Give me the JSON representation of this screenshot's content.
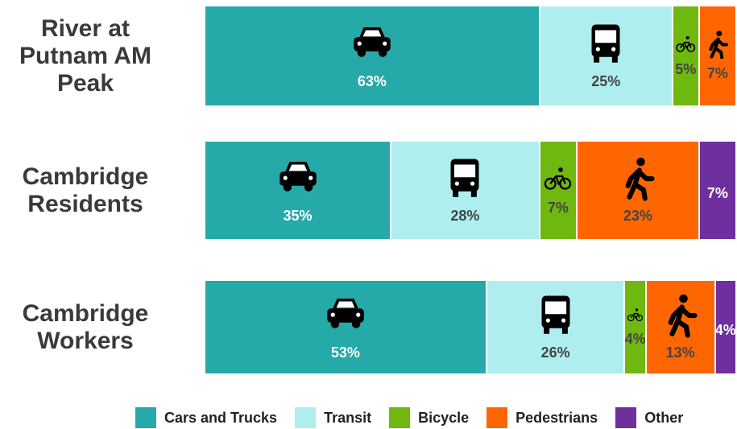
{
  "chart_data": {
    "type": "stacked-bar-horizontal",
    "categories": [
      "River at Putnam AM Peak",
      "Cambridge Residents",
      "Cambridge Workers"
    ],
    "series": [
      {
        "name": "Cars and Trucks",
        "color": "#26a9a9",
        "values": [
          63,
          35,
          53
        ],
        "value_labels": [
          "63%",
          "35%",
          "53%"
        ]
      },
      {
        "name": "Transit",
        "color": "#aeeeee",
        "values": [
          25,
          28,
          26
        ],
        "value_labels": [
          "25%",
          "28%",
          "26%"
        ]
      },
      {
        "name": "Bicycle",
        "color": "#6fb80f",
        "values": [
          5,
          7,
          4
        ],
        "value_labels": [
          "5%",
          "7%",
          "4%"
        ]
      },
      {
        "name": "Pedestrians",
        "color": "#ff6600",
        "values": [
          7,
          23,
          13
        ],
        "value_labels": [
          "7%",
          "23%",
          "13%"
        ]
      },
      {
        "name": "Other",
        "color": "#6f2f9f",
        "values": [
          null,
          7,
          4
        ],
        "value_labels": [
          null,
          "7%",
          "4%"
        ]
      }
    ]
  }
}
